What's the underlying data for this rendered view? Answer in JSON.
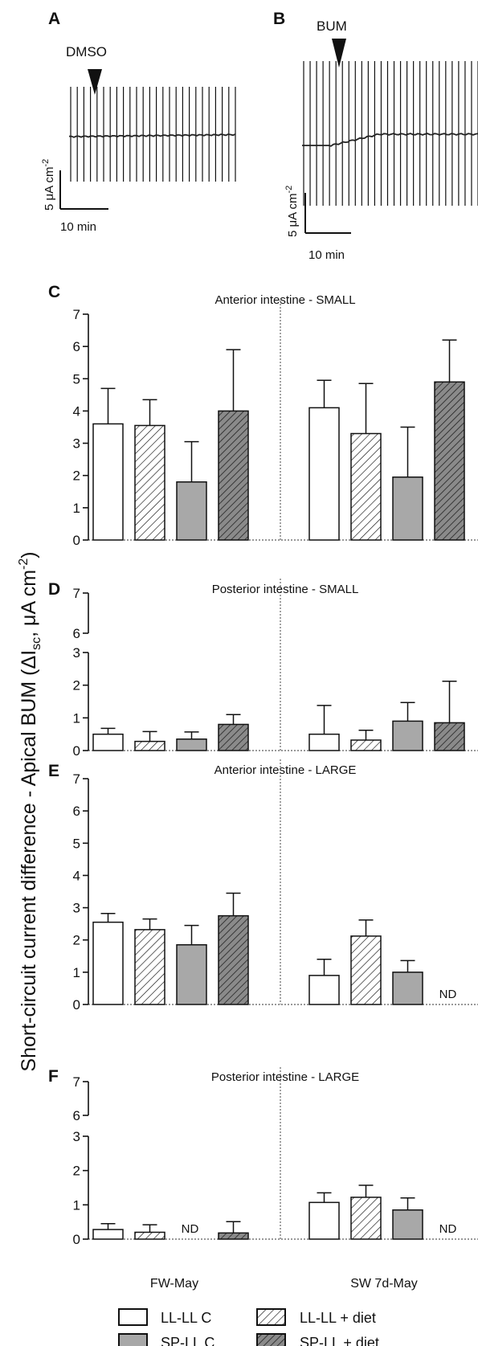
{
  "colors": {
    "ink": "#111111",
    "filled": "#a8a8a8",
    "filled_dark": "#8a8a8a",
    "open": "#ffffff"
  },
  "traces": {
    "A": {
      "letter": "A",
      "arrow_label": "DMSO",
      "scale_y": "5 μA cm",
      "scale_exp": "-2",
      "scale_x": "10 min"
    },
    "B": {
      "letter": "B",
      "arrow_label": "BUM",
      "scale_y": "5 μA cm",
      "scale_exp": "-2",
      "scale_x": "10 min"
    }
  },
  "y_axis_label": {
    "main": "Short-circuit current difference - Apical BUM (ΔI",
    "sub": "sc",
    "mid": ", μA cm",
    "sup": "-2",
    "end": ")"
  },
  "groups": [
    "FW-May",
    "SW 7d-May"
  ],
  "legend": [
    {
      "label": "LL-LL C",
      "style": "open"
    },
    {
      "label": "LL-LL + diet",
      "style": "hatch-light"
    },
    {
      "label": "SP-LL C",
      "style": "filled"
    },
    {
      "label": "SP-LL + diet",
      "style": "hatch-dark"
    }
  ],
  "nd_label": "ND",
  "chart_data": [
    {
      "type": "bar",
      "panel": "C",
      "title": "Anterior intestine - SMALL",
      "ylim": [
        0,
        7
      ],
      "yticks": [
        "0",
        "1",
        "2",
        "3",
        "4",
        "5",
        "6",
        "7"
      ],
      "categories": [
        "FW-May",
        "SW 7d-May"
      ],
      "series": [
        {
          "name": "LL-LL C",
          "values": [
            3.6,
            4.1
          ],
          "errors": [
            1.1,
            0.85
          ]
        },
        {
          "name": "LL-LL + diet",
          "values": [
            3.55,
            3.3
          ],
          "errors": [
            0.8,
            1.55
          ]
        },
        {
          "name": "SP-LL C",
          "values": [
            1.8,
            1.95
          ],
          "errors": [
            1.25,
            1.55
          ]
        },
        {
          "name": "SP-LL + diet",
          "values": [
            4.0,
            4.9
          ],
          "errors": [
            1.9,
            1.3
          ]
        }
      ]
    },
    {
      "type": "bar",
      "panel": "D",
      "title": "Posterior intestine - SMALL",
      "ylim": [
        0,
        7
      ],
      "axis_break": [
        3,
        6
      ],
      "yticks": [
        "0",
        "1",
        "2",
        "3",
        "6",
        "7"
      ],
      "categories": [
        "FW-May",
        "SW 7d-May"
      ],
      "series": [
        {
          "name": "LL-LL C",
          "values": [
            0.5,
            0.5
          ],
          "errors": [
            0.18,
            0.88
          ]
        },
        {
          "name": "LL-LL + diet",
          "values": [
            0.28,
            0.32
          ],
          "errors": [
            0.3,
            0.3
          ]
        },
        {
          "name": "SP-LL C",
          "values": [
            0.35,
            0.9
          ],
          "errors": [
            0.22,
            0.57
          ]
        },
        {
          "name": "SP-LL + diet",
          "values": [
            0.8,
            0.85
          ],
          "errors": [
            0.3,
            1.27
          ]
        }
      ]
    },
    {
      "type": "bar",
      "panel": "E",
      "title": "Anterior intestine - LARGE",
      "ylim": [
        0,
        7
      ],
      "yticks": [
        "0",
        "1",
        "2",
        "3",
        "4",
        "5",
        "6",
        "7"
      ],
      "categories": [
        "FW-May",
        "SW 7d-May"
      ],
      "series": [
        {
          "name": "LL-LL C",
          "values": [
            2.55,
            0.9
          ],
          "errors": [
            0.27,
            0.5
          ]
        },
        {
          "name": "LL-LL + diet",
          "values": [
            2.32,
            2.12
          ],
          "errors": [
            0.33,
            0.5
          ]
        },
        {
          "name": "SP-LL C",
          "values": [
            1.85,
            1.0
          ],
          "errors": [
            0.6,
            0.36
          ]
        },
        {
          "name": "SP-LL + diet",
          "values": [
            2.75,
            null
          ],
          "errors": [
            0.7,
            null
          ]
        }
      ],
      "not_determined": [
        {
          "series": "SP-LL + diet",
          "category": "SW 7d-May"
        }
      ]
    },
    {
      "type": "bar",
      "panel": "F",
      "title": "Posterior intestine - LARGE",
      "ylim": [
        0,
        7
      ],
      "axis_break": [
        3,
        6
      ],
      "yticks": [
        "0",
        "1",
        "2",
        "3",
        "6",
        "7"
      ],
      "categories": [
        "FW-May",
        "SW 7d-May"
      ],
      "series": [
        {
          "name": "LL-LL C",
          "values": [
            0.28,
            1.07
          ],
          "errors": [
            0.17,
            0.28
          ]
        },
        {
          "name": "LL-LL + diet",
          "values": [
            0.2,
            1.22
          ],
          "errors": [
            0.22,
            0.35
          ]
        },
        {
          "name": "SP-LL C",
          "values": [
            null,
            0.85
          ],
          "errors": [
            null,
            0.35
          ]
        },
        {
          "name": "SP-LL + diet",
          "values": [
            0.18,
            null
          ],
          "errors": [
            0.33,
            null
          ]
        }
      ],
      "not_determined": [
        {
          "series": "SP-LL C",
          "category": "FW-May"
        },
        {
          "series": "SP-LL + diet",
          "category": "SW 7d-May"
        }
      ]
    }
  ]
}
